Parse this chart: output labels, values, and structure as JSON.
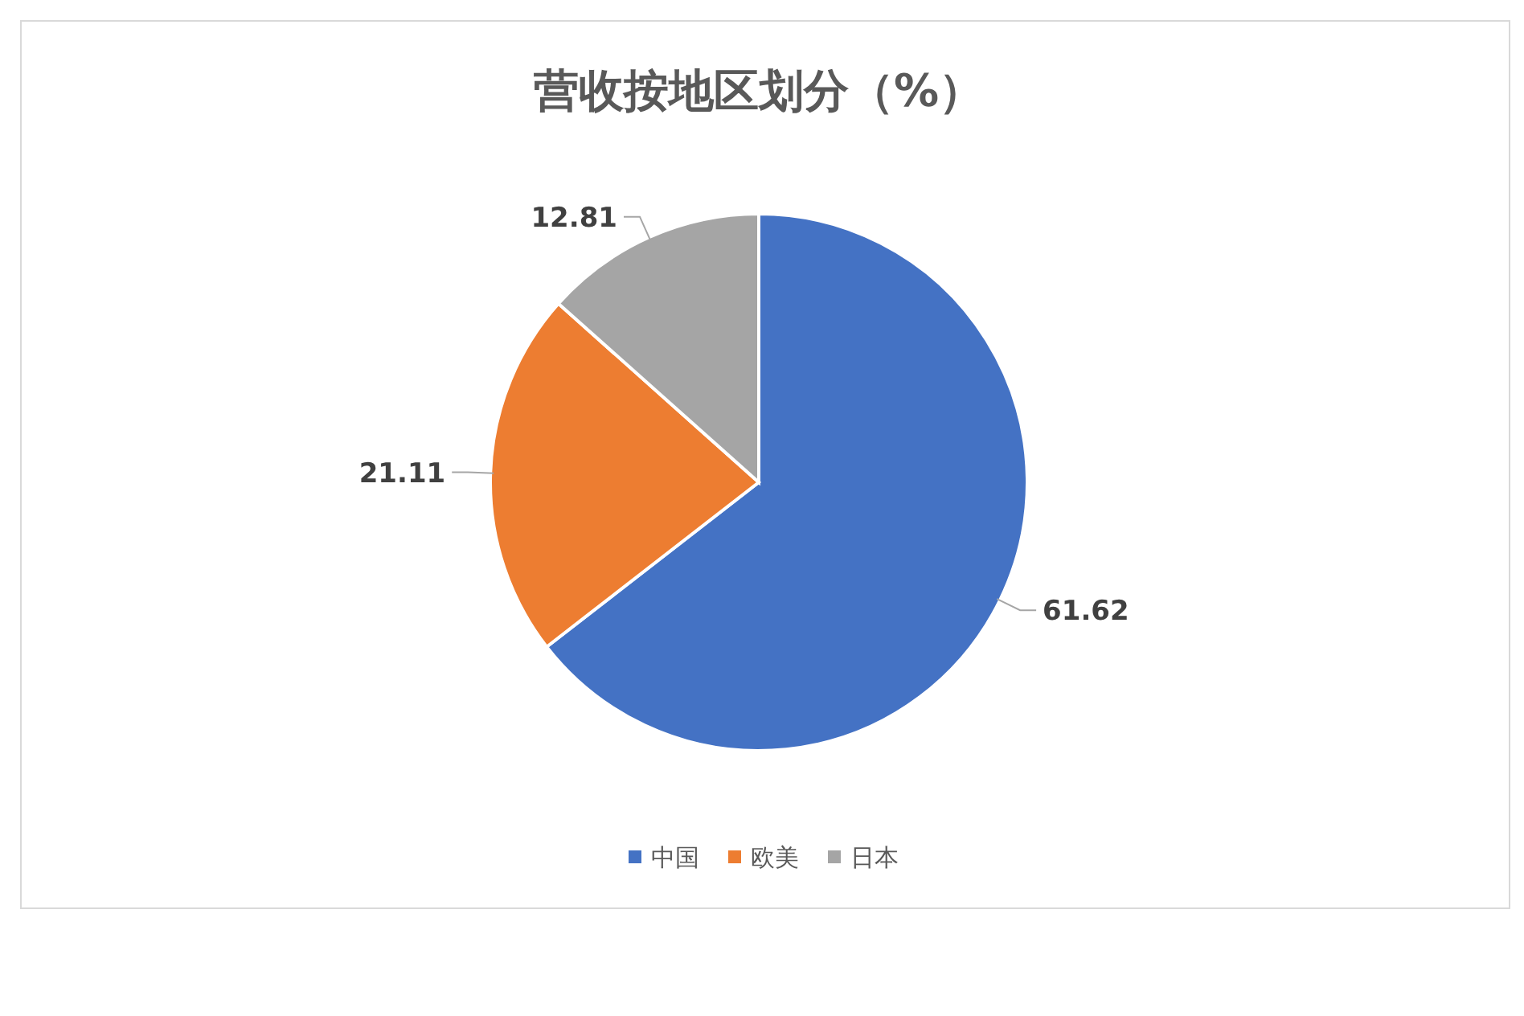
{
  "chart_data": {
    "type": "pie",
    "title": "营收按地区划分（%）",
    "categories": [
      "中国",
      "欧美",
      "日本"
    ],
    "values": [
      61.62,
      21.11,
      12.81
    ],
    "colors": [
      "#4472c4",
      "#ed7d31",
      "#a5a5a5"
    ],
    "data_labels": true,
    "legend": "bottom"
  }
}
